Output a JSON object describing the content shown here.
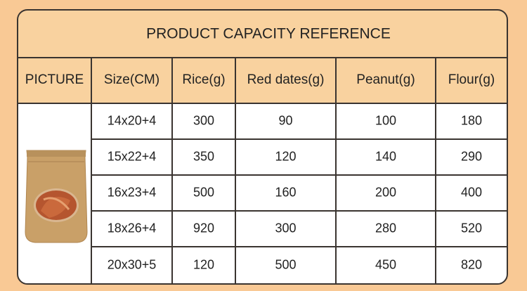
{
  "table": {
    "title": "PRODUCT CAPACITY REFERENCE",
    "header": [
      "PICTURE",
      "Size(CM)",
      "Rice(g)",
      "Red dates(g)",
      "Peanut(g)",
      "Flour(g)"
    ],
    "rows": [
      [
        "14x20+4",
        "300",
        "90",
        "100",
        "180"
      ],
      [
        "15x22+4",
        "350",
        "120",
        "140",
        "290"
      ],
      [
        "16x23+4",
        "500",
        "160",
        "200",
        "400"
      ],
      [
        "18x26+4",
        "920",
        "300",
        "280",
        "520"
      ],
      [
        "20x30+5",
        "120",
        "500",
        "450",
        "820"
      ]
    ]
  }
}
